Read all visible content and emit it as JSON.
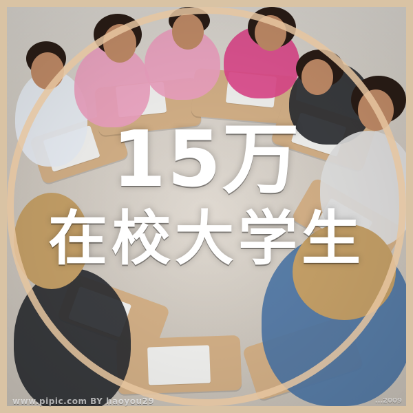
{
  "headline": {
    "line1": "15万",
    "line2": "在校大学生"
  },
  "watermarks": {
    "left": "www.pipic.com  BY  haoyou29",
    "right": "...2009"
  },
  "colors": {
    "frame_bg": "#d9c3a4",
    "ring": "#e6c6a0",
    "text": "#ffffff"
  }
}
